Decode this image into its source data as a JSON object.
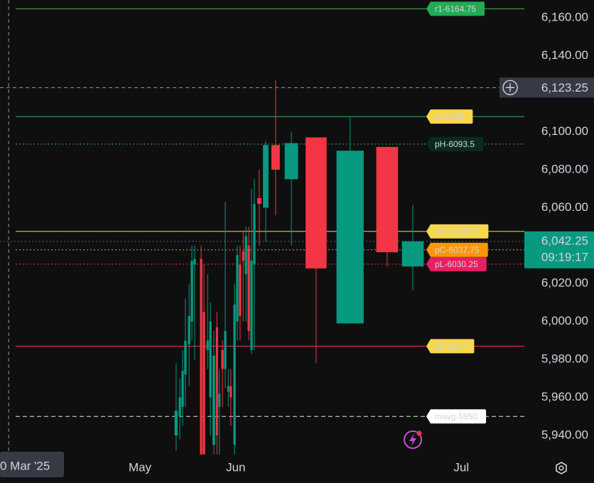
{
  "chart_data": {
    "type": "candlestick",
    "up_color": "#089981",
    "down_color": "#f23645",
    "x": [
      132.7,
      133.9,
      134.8,
      135.7,
      136.9,
      137.8,
      138.7,
      140.8,
      141.7,
      142.9,
      143.8,
      144.9,
      145.9,
      146.7,
      147.7,
      148.6,
      149.6,
      150.4,
      151.6,
      152.5,
      153.4,
      154.4,
      155.3,
      156.2,
      157.1,
      158.0,
      159.6,
      161.7,
      164.9,
      170.0,
      178.0,
      189.0,
      201.0,
      209.3
    ],
    "open": [
      5940,
      5950,
      5955,
      5972,
      5988,
      6000,
      6030,
      6033,
      6005,
      5985,
      5960,
      5935,
      5997,
      5955,
      5985,
      5975,
      5963,
      5966,
      5935,
      6000,
      6030,
      6037,
      6025,
      6040,
      5985,
      6030,
      6065,
      6060,
      6093,
      6075,
      6097,
      5999,
      6092,
      6029
    ],
    "high": [
      5978,
      5970,
      5985,
      6012,
      6020,
      6040,
      6040,
      6040,
      6030,
      6025,
      6010,
      5995,
      6005,
      5975,
      5990,
      6063,
      5975,
      5975,
      6020,
      6040,
      6040,
      6048,
      6050,
      6050,
      6070,
      6075,
      6080,
      6095,
      6127,
      6100,
      6097,
      6108,
      6092,
      6061.5
    ],
    "low": [
      5932,
      5938,
      5945,
      5955,
      5966,
      5990,
      5980,
      5930,
      5930,
      5975,
      5940,
      5930,
      5930,
      5930,
      5955,
      5965,
      5955,
      5945,
      5930,
      5990,
      5990,
      6000,
      6000,
      5990,
      5983,
      5985,
      6040,
      6042,
      6056,
      6040,
      5978,
      5999,
      6029,
      6016.5
    ],
    "close": [
      5953,
      5960,
      5974,
      5990,
      6003,
      6032,
      6033,
      5930,
      5930,
      5990,
      6000,
      5982,
      5940,
      5962,
      5975,
      5995,
      5966,
      5960,
      6009,
      6035,
      6003,
      6032,
      6045,
      5995,
      6032,
      6062,
      6062,
      6093,
      6080,
      6094,
      6028,
      6090,
      6036.5,
      6042.25
    ],
    "xlim": [
      75.7,
      245.4
    ],
    "xticks": [
      {
        "value": 121,
        "label": "May"
      },
      {
        "value": 152,
        "label": "Jun"
      },
      {
        "value": 225,
        "label": "Jul"
      }
    ],
    "ylim": [
      5929.9,
      6169.4
    ],
    "yticks": [
      {
        "value": 5940,
        "label": "5,940.00"
      },
      {
        "value": 5960,
        "label": "5,960.00"
      },
      {
        "value": 5980,
        "label": "5,980.00"
      },
      {
        "value": 6000,
        "label": "6,000.00"
      },
      {
        "value": 6020,
        "label": "6,020.00"
      },
      {
        "value": 6060,
        "label": "6,060.00"
      },
      {
        "value": 6080,
        "label": "6,080.00"
      },
      {
        "value": 6100,
        "label": "6,100.00"
      },
      {
        "value": 6140,
        "label": "6,140.00"
      },
      {
        "value": 6160,
        "label": "6,160.00"
      }
    ],
    "levels": [
      {
        "label": "r1-6164.75",
        "value": 6164.75,
        "color": "#4caf50",
        "style": "solid",
        "label_bg": "#22ab54",
        "label_color": "#ffffff"
      },
      {
        "label": "pr-6108",
        "value": 6108,
        "color": "#4caf50",
        "style": "solid",
        "label_bg": "#f7d74c",
        "label_color": "#131722"
      },
      {
        "label": "pH-6093.5",
        "value": 6093.5,
        "color": "#4caf50",
        "style": "dotted",
        "label_bg": "#0b2a1e",
        "label_color": "#e0e3eb"
      },
      {
        "label": "wPv-6047.5",
        "value": 6047.5,
        "color": "#f7d74c",
        "style": "solid",
        "label_bg": "#f7d74c",
        "label_color": "#131722"
      },
      {
        "label": "pC-6037.75",
        "value": 6037.75,
        "color": "#ff9800",
        "style": "dotted",
        "label_bg": "#ff9800",
        "label_color": "#ffffff"
      },
      {
        "label": "pL-6030.25",
        "value": 6030.25,
        "color": "#f23645",
        "style": "dotted",
        "label_bg": "#e91e63",
        "label_color": "#ffffff"
      },
      {
        "label": "ps-5987",
        "value": 5987,
        "color": "#f23645",
        "style": "solid",
        "label_bg": "#f7d74c",
        "label_color": "#131722"
      },
      {
        "label": "mavg-5950",
        "value": 5950,
        "color": "#e0e3eb",
        "style": "dashed",
        "label_bg": "#ffffff",
        "label_color": "#131722"
      }
    ],
    "crosshair": {
      "value": 6123.25,
      "label": "6,123.25",
      "time_label": "0 Mar '25",
      "time_value": 78.5
    },
    "last_price": {
      "value": 6042.25,
      "label": "6,042.25",
      "countdown": "09:19:17",
      "color": "#089981"
    }
  }
}
